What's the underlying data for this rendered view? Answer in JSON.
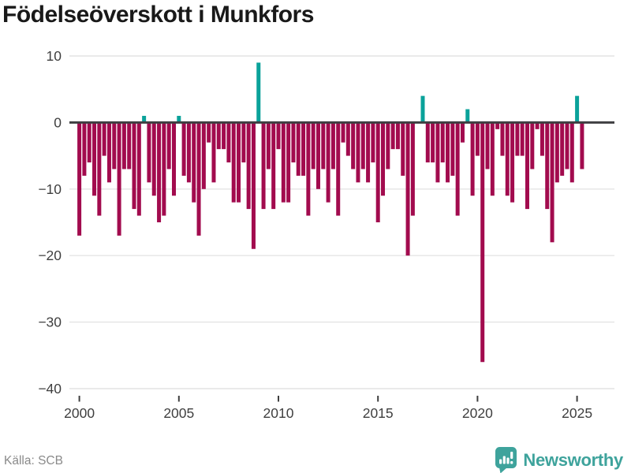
{
  "header": {
    "title": "Födelseöverskott i Munkfors"
  },
  "footer": {
    "source": "Källa: SCB",
    "brand": "Newsworthy",
    "brand_icon": "newsworthy-speech-bubble-barchart-icon"
  },
  "chart_data": {
    "type": "bar",
    "title": "Födelseöverskott i Munkfors",
    "xlabel": "",
    "ylabel": "",
    "x_axis": {
      "tick_labels": [
        "2000",
        "2005",
        "2010",
        "2015",
        "2020",
        "2025"
      ],
      "tick_values": [
        2000,
        2005,
        2010,
        2015,
        2020,
        2025
      ],
      "resolution": "quarterly"
    },
    "y_axis": {
      "tick_labels": [
        "10",
        "0",
        "−10",
        "−20",
        "−30",
        "−40"
      ],
      "tick_values": [
        10,
        0,
        -10,
        -20,
        -30,
        -40
      ],
      "range": [
        -40,
        10
      ]
    },
    "grid": true,
    "legend": false,
    "colors": {
      "negative_bar": "#a20b4e",
      "positive_bar": "#0aa29a",
      "zero_line": "#3f3f42",
      "gridline": "#e4e4e4",
      "axis_text": "#3f3f3f",
      "brand_teal": "#3ea39c"
    },
    "series": [
      {
        "year": 2000,
        "q": [
          -17,
          -8,
          -6,
          -11
        ]
      },
      {
        "year": 2001,
        "q": [
          -14,
          -5,
          -9,
          -7
        ]
      },
      {
        "year": 2002,
        "q": [
          -17,
          -7,
          -7,
          -13
        ]
      },
      {
        "year": 2003,
        "q": [
          -14,
          1,
          -9,
          -11
        ]
      },
      {
        "year": 2004,
        "q": [
          -15,
          -14,
          -7,
          -11
        ]
      },
      {
        "year": 2005,
        "q": [
          1,
          -8,
          -9,
          -12
        ]
      },
      {
        "year": 2006,
        "q": [
          -17,
          -10,
          -3,
          -9
        ]
      },
      {
        "year": 2007,
        "q": [
          -4,
          -4,
          -6,
          -12
        ]
      },
      {
        "year": 2008,
        "q": [
          -12,
          -6,
          -13,
          -19
        ]
      },
      {
        "year": 2009,
        "q": [
          9,
          -13,
          -7,
          -13
        ]
      },
      {
        "year": 2010,
        "q": [
          -4,
          -12,
          -12,
          -6
        ]
      },
      {
        "year": 2011,
        "q": [
          -8,
          -8,
          -14,
          -7
        ]
      },
      {
        "year": 2012,
        "q": [
          -10,
          -7,
          -12,
          -7
        ]
      },
      {
        "year": 2013,
        "q": [
          -14,
          -3,
          -5,
          -7
        ]
      },
      {
        "year": 2014,
        "q": [
          -9,
          -7,
          -9,
          -6
        ]
      },
      {
        "year": 2015,
        "q": [
          -15,
          -11,
          -7,
          -4
        ]
      },
      {
        "year": 2016,
        "q": [
          -4,
          -8,
          -20,
          -14
        ]
      },
      {
        "year": 2017,
        "q": [
          0,
          4,
          -6,
          -6
        ]
      },
      {
        "year": 2018,
        "q": [
          -9,
          -6,
          -9,
          -8
        ]
      },
      {
        "year": 2019,
        "q": [
          -14,
          -3,
          2,
          -11
        ]
      },
      {
        "year": 2020,
        "q": [
          -5,
          -36,
          -7,
          -11
        ]
      },
      {
        "year": 2021,
        "q": [
          -1,
          -5,
          -11,
          -12
        ]
      },
      {
        "year": 2022,
        "q": [
          -5,
          -5,
          -13,
          -7
        ]
      },
      {
        "year": 2023,
        "q": [
          -1,
          -5,
          -13,
          -18
        ]
      },
      {
        "year": 2024,
        "q": [
          -9,
          -8,
          -7,
          -9
        ]
      },
      {
        "year": 2025,
        "q": [
          4,
          -7
        ]
      }
    ]
  }
}
